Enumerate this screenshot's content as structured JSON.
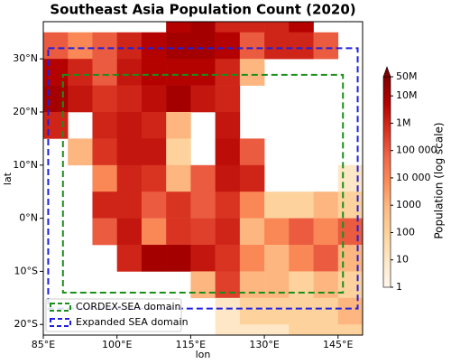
{
  "chart_data": {
    "type": "grid-map",
    "title": "Southeast Asia Population Count (2020)",
    "x_label": "lon",
    "y_label": "lat",
    "xlim": [
      85,
      150
    ],
    "ylim": [
      -22,
      37
    ],
    "xticks": [
      {
        "value": 85,
        "label": "85°E"
      },
      {
        "value": 100,
        "label": "100°E"
      },
      {
        "value": 115,
        "label": "115°E"
      },
      {
        "value": 130,
        "label": "130°E"
      },
      {
        "value": 145,
        "label": "145°E"
      }
    ],
    "yticks": [
      {
        "value": -20,
        "label": "20°S"
      },
      {
        "value": -10,
        "label": "10°S"
      },
      {
        "value": 0,
        "label": "0°N"
      },
      {
        "value": 10,
        "label": "10°N"
      },
      {
        "value": 20,
        "label": "20°N"
      },
      {
        "value": 30,
        "label": "30°N"
      }
    ],
    "lon_edges": [
      85,
      90,
      95,
      100,
      105,
      110,
      115,
      120,
      125,
      130,
      135,
      140,
      145,
      150
    ],
    "lat_edges": [
      40,
      35,
      30,
      25,
      20,
      15,
      10,
      5,
      0,
      -5,
      -10,
      -15,
      -20,
      -25
    ],
    "values": [
      [
        null,
        null,
        null,
        null,
        null,
        5000000,
        10000000,
        1000000,
        1000000,
        1000000,
        5000000,
        null,
        null
      ],
      [
        100000,
        10000,
        100000,
        1000000,
        5000000,
        10000000,
        10000000,
        5000000,
        100000,
        1000000,
        1000000,
        100000,
        null
      ],
      [
        5000000,
        1000000,
        100000,
        2000000,
        5000000,
        5000000,
        5000000,
        1000000,
        1000,
        null,
        null,
        null,
        null
      ],
      [
        10000000,
        2000000,
        500000,
        1000000,
        3000000,
        10000000,
        2000000,
        1000000,
        null,
        null,
        null,
        null,
        null
      ],
      [
        1000000,
        null,
        1000000,
        2000000,
        1000000,
        1000,
        null,
        2000000,
        null,
        null,
        null,
        null,
        null
      ],
      [
        null,
        1000,
        500000,
        2000000,
        2000000,
        100,
        null,
        3000000,
        100000,
        null,
        null,
        null,
        null
      ],
      [
        null,
        null,
        10000,
        1000000,
        500000,
        1000,
        100000,
        2000000,
        1000000,
        null,
        null,
        null,
        10
      ],
      [
        null,
        null,
        1000000,
        1000000,
        100000,
        500000,
        100000,
        500000,
        10000,
        100,
        100,
        1000,
        100
      ],
      [
        null,
        null,
        100000,
        2000000,
        10000,
        500000,
        300000,
        1000000,
        1000,
        10000,
        100000,
        10000,
        100000
      ],
      [
        null,
        null,
        null,
        1000000,
        10000000,
        10000000,
        2000000,
        500000,
        10000,
        1000,
        10000,
        100000,
        1000
      ],
      [
        null,
        null,
        null,
        null,
        null,
        null,
        1000,
        300000,
        1000,
        1000,
        100,
        1000,
        100
      ],
      [
        null,
        null,
        null,
        null,
        null,
        null,
        null,
        10,
        100,
        100,
        100,
        100,
        1000
      ],
      [
        null,
        null,
        null,
        null,
        null,
        null,
        null,
        10,
        10,
        10,
        100,
        100,
        100
      ]
    ],
    "colormap": [
      "#fff7ec",
      "#fee8c8",
      "#fdd49e",
      "#fdbb84",
      "#fc8d59",
      "#ef6548",
      "#d7301f",
      "#b30000",
      "#7f0000"
    ],
    "log_scale": true,
    "clim": [
      1,
      50000000
    ],
    "colorbar_label": "Population (log scale)",
    "cticks": [
      1,
      10,
      100,
      1000,
      {
        "value": 10000,
        "label": "10 000"
      },
      {
        "value": 100000,
        "label": "100 000"
      },
      {
        "value": 1000000,
        "label": "1M"
      },
      {
        "value": 10000000,
        "label": "10M"
      },
      {
        "value": 50000000,
        "label": "50M"
      }
    ],
    "legend_position": "lower left",
    "domains": [
      {
        "name": "CORDEX-SEA domain",
        "color": "#1a8f1a",
        "lon": [
          89,
          146
        ],
        "lat": [
          -14,
          27
        ]
      },
      {
        "name": "Expanded SEA domain",
        "color": "#1f1fe0",
        "lon": [
          86,
          149
        ],
        "lat": [
          -17,
          32
        ]
      }
    ]
  }
}
